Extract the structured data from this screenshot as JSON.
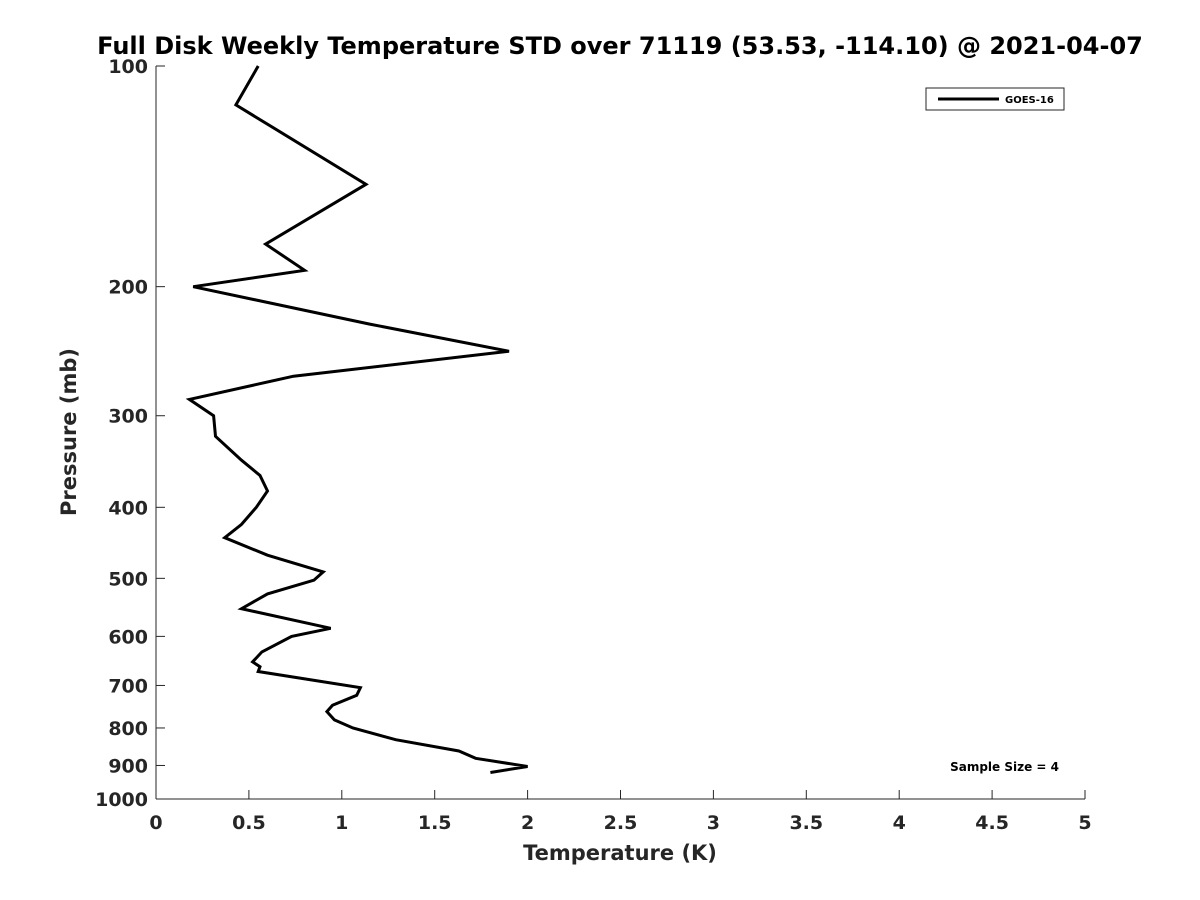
{
  "chart_data": {
    "type": "line",
    "title": "Full Disk Weekly Temperature STD over 71119 (53.53, -114.10) @ 2021-04-07",
    "xlabel": "Temperature (K)",
    "ylabel": "Pressure (mb)",
    "xlim": [
      0,
      5
    ],
    "ylim": [
      1000,
      100
    ],
    "y_scale": "log",
    "y_reversed": true,
    "x_ticks": [
      "0",
      "0.5",
      "1",
      "1.5",
      "2",
      "2.5",
      "3",
      "3.5",
      "4",
      "4.5",
      "5"
    ],
    "x_tick_values": [
      0,
      0.5,
      1,
      1.5,
      2,
      2.5,
      3,
      3.5,
      4,
      4.5,
      5
    ],
    "y_ticks": [
      "100",
      "200",
      "300",
      "400",
      "500",
      "600",
      "700",
      "800",
      "900",
      "1000"
    ],
    "y_tick_values": [
      100,
      200,
      300,
      400,
      500,
      600,
      700,
      800,
      900,
      1000
    ],
    "grid": false,
    "legend_position": "top-right",
    "series": [
      {
        "name": "GOES-16",
        "color": "#000000",
        "points": [
          [
            0.55,
            100
          ],
          [
            0.43,
            113
          ],
          [
            1.13,
            145
          ],
          [
            0.59,
            175
          ],
          [
            0.8,
            190
          ],
          [
            0.2,
            200
          ],
          [
            1.15,
            225
          ],
          [
            1.9,
            245
          ],
          [
            0.74,
            265
          ],
          [
            0.18,
            285
          ],
          [
            0.31,
            300
          ],
          [
            0.32,
            320
          ],
          [
            0.46,
            345
          ],
          [
            0.56,
            362
          ],
          [
            0.6,
            380
          ],
          [
            0.54,
            400
          ],
          [
            0.46,
            422
          ],
          [
            0.37,
            440
          ],
          [
            0.6,
            465
          ],
          [
            0.9,
            490
          ],
          [
            0.85,
            503
          ],
          [
            0.6,
            525
          ],
          [
            0.46,
            550
          ],
          [
            0.94,
            585
          ],
          [
            0.73,
            600
          ],
          [
            0.57,
            630
          ],
          [
            0.52,
            650
          ],
          [
            0.56,
            660
          ],
          [
            0.55,
            670
          ],
          [
            1.1,
            705
          ],
          [
            1.08,
            722
          ],
          [
            0.95,
            745
          ],
          [
            0.92,
            760
          ],
          [
            0.96,
            780
          ],
          [
            1.06,
            800
          ],
          [
            1.29,
            830
          ],
          [
            1.63,
            860
          ],
          [
            1.72,
            880
          ],
          [
            2.0,
            903
          ],
          [
            1.8,
            920
          ]
        ]
      }
    ],
    "annotations": [
      "Sample Size = 4"
    ]
  }
}
